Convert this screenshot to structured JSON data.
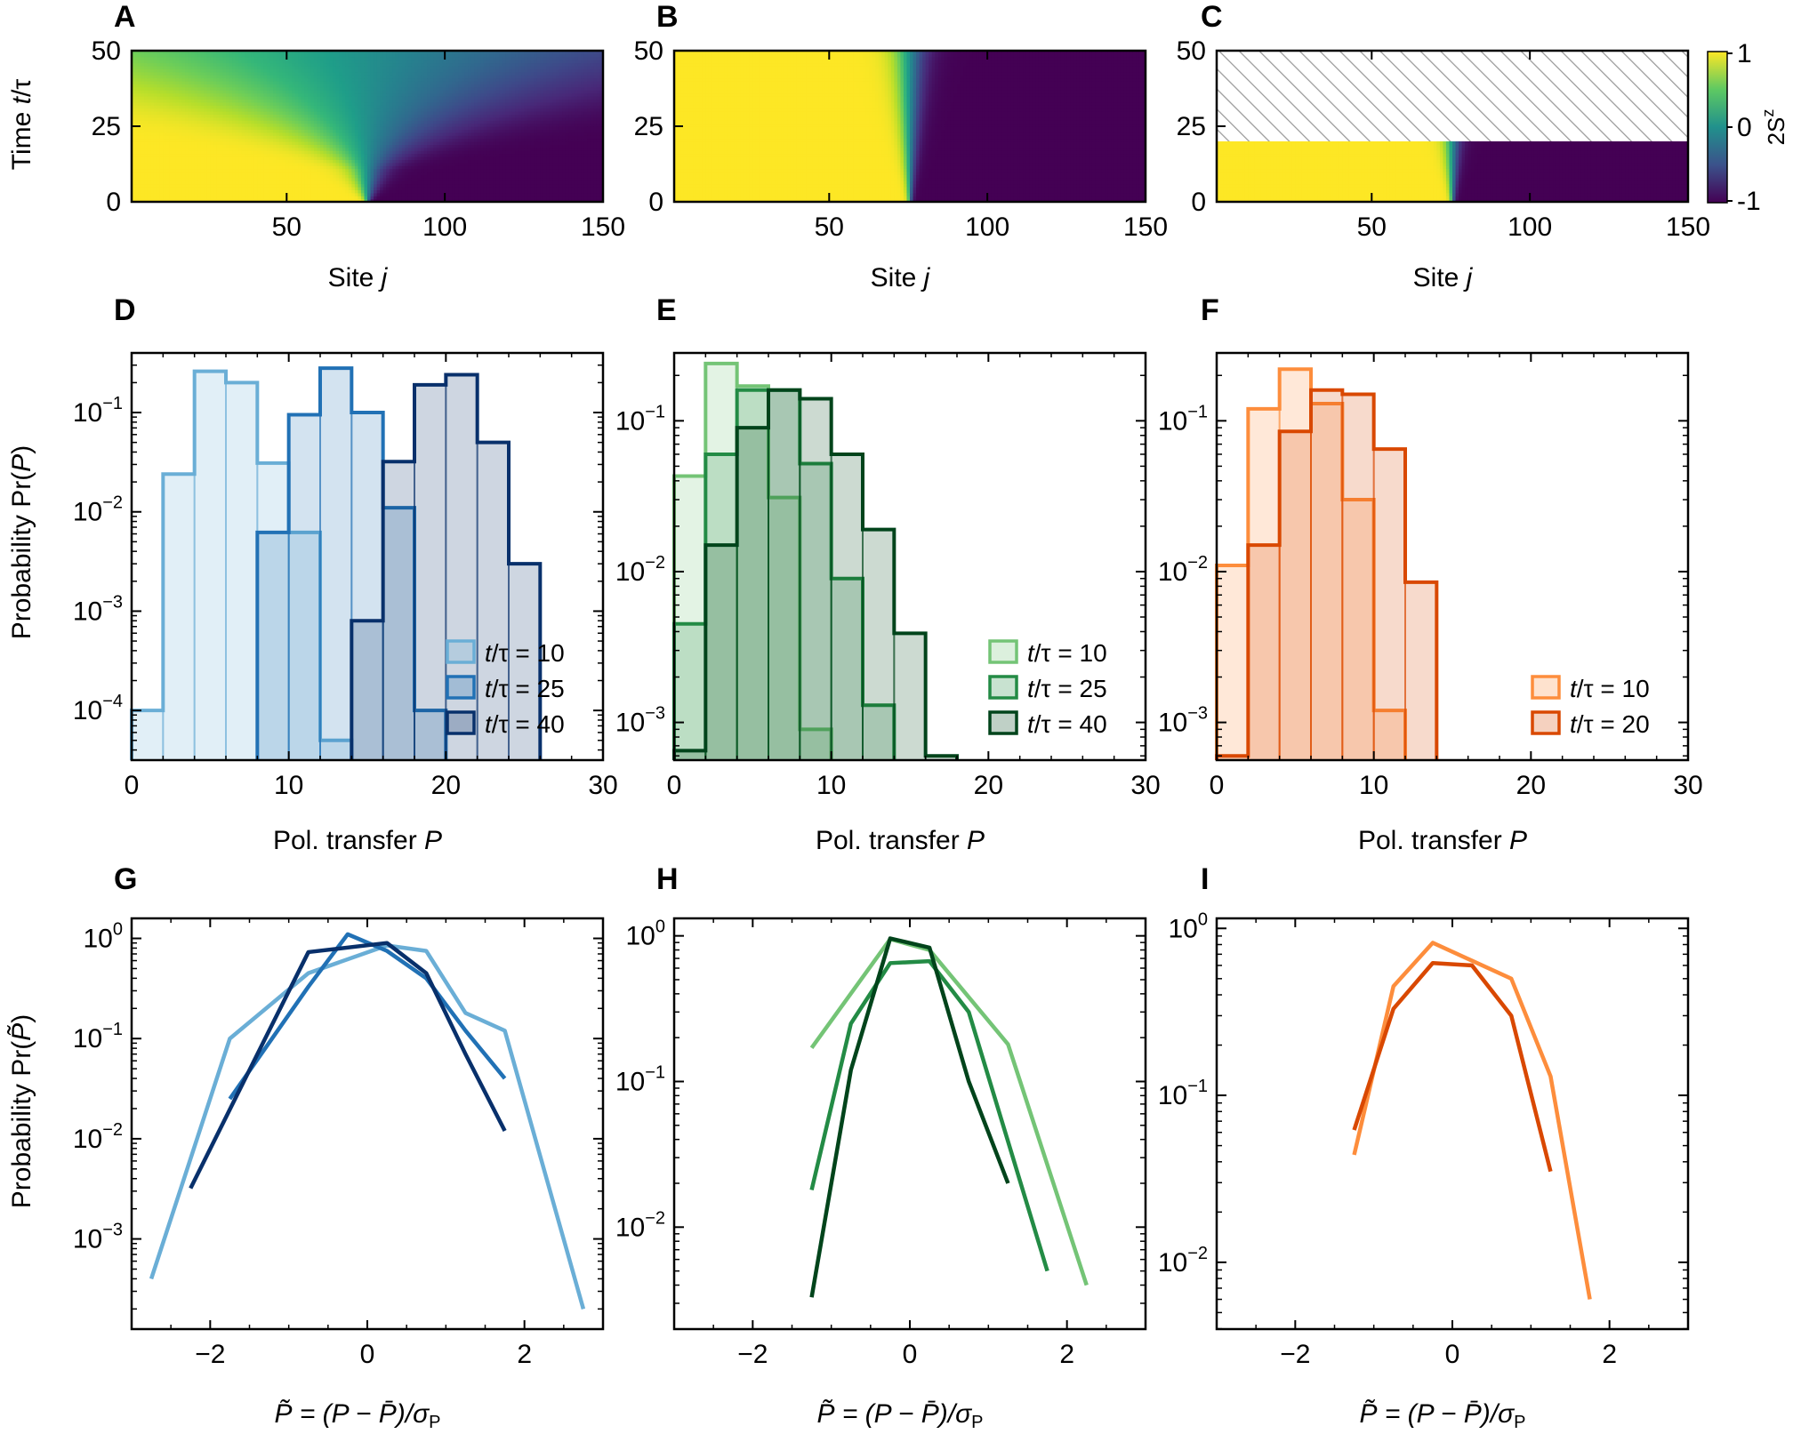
{
  "colors": {
    "blues": [
      "#6aaed6",
      "#2171b5",
      "#08306b"
    ],
    "greens": [
      "#74c476",
      "#238b45",
      "#00441b"
    ],
    "oranges": [
      "#fd8d3c",
      "#d94801"
    ],
    "viridis_low": "#440154",
    "viridis_mid": "#21918c",
    "viridis_high": "#fde725"
  },
  "heatmap_labels": {
    "ylabel_prefix": "Time ",
    "ylabel_italic": "t",
    "ylabel_suffix": "/τ",
    "xlabel_prefix": "Site ",
    "xlabel_italic": "j"
  },
  "colorbar": {
    "label": "2S",
    "label_sup": "z",
    "ticks": [
      "1",
      "0",
      "-1"
    ]
  },
  "hist_labels": {
    "ylabel_prefix": "Probability Pr(",
    "ylabel_italic": "P",
    "ylabel_suffix": ")",
    "xlabel_prefix": "Pol. transfer ",
    "xlabel_italic": "P"
  },
  "rescaled_labels": {
    "ylabel_prefix": "Probability Pr(",
    "ylabel_italic": "P̃",
    "ylabel_suffix": ")",
    "xlabel": "P̃ = (P − P̄)/σ",
    "xlabel_sub": "P"
  },
  "chart_data": [
    {
      "panel": "A",
      "type": "heatmap",
      "xlim": [
        1,
        150
      ],
      "ylim": [
        0,
        50
      ],
      "x_ticks": [
        50,
        100,
        150
      ],
      "y_ticks": [
        0,
        25,
        50
      ],
      "x_tick_labels": [
        "50",
        "100",
        "150"
      ],
      "y_tick_labels": [
        "0",
        "25",
        "50"
      ],
      "value_range": [
        -1,
        1
      ],
      "center_site": 75.5,
      "front_width": 12,
      "front_slope": 1.05,
      "t_max_data": 50
    },
    {
      "panel": "B",
      "type": "heatmap",
      "xlim": [
        1,
        150
      ],
      "ylim": [
        0,
        50
      ],
      "x_ticks": [
        50,
        100,
        150
      ],
      "y_ticks": [
        0,
        25,
        50
      ],
      "x_tick_labels": [
        "50",
        "100",
        "150"
      ],
      "y_tick_labels": [
        "0",
        "25",
        "50"
      ],
      "value_range": [
        -1,
        1
      ],
      "center_site": 75.5,
      "front_width": 10,
      "front_slope": 0.2,
      "t_max_data": 50
    },
    {
      "panel": "C",
      "type": "heatmap",
      "xlim": [
        1,
        150
      ],
      "ylim": [
        0,
        50
      ],
      "x_ticks": [
        50,
        100,
        150
      ],
      "y_ticks": [
        0,
        25,
        50
      ],
      "x_tick_labels": [
        "50",
        "100",
        "150"
      ],
      "y_tick_labels": [
        "0",
        "25",
        "50"
      ],
      "value_range": [
        -1,
        1
      ],
      "center_site": 75.5,
      "front_width": 10,
      "front_slope": 0.22,
      "t_max_data": 20
    },
    {
      "panel": "D",
      "type": "bar",
      "xlim": [
        0,
        30
      ],
      "ylim_log10": [
        -4.5,
        -0.4
      ],
      "x_ticks": [
        0,
        10,
        20,
        30
      ],
      "x_tick_labels": [
        "0",
        "10",
        "20",
        "30"
      ],
      "y_tick_exponents": [
        -1,
        -2,
        -3,
        -4
      ],
      "legend": "lower-right",
      "series": [
        {
          "name": "t/τ=10",
          "bin_edges": [
            0,
            2,
            4,
            6,
            8,
            10,
            12,
            14
          ],
          "values": [
            0.0001,
            0.024,
            0.26,
            0.2,
            0.031,
            0.0062,
            5e-05
          ]
        },
        {
          "name": "t/τ=25",
          "bin_edges": [
            8,
            10,
            12,
            14,
            16,
            18,
            20
          ],
          "values": [
            0.0062,
            0.095,
            0.28,
            0.1,
            0.011,
            0.0001
          ]
        },
        {
          "name": "t/τ=40",
          "bin_edges": [
            14,
            16,
            18,
            20,
            22,
            24,
            26
          ],
          "values": [
            0.0008,
            0.032,
            0.19,
            0.24,
            0.05,
            0.003
          ]
        }
      ]
    },
    {
      "panel": "E",
      "type": "bar",
      "xlim": [
        0,
        30
      ],
      "ylim_log10": [
        -3.25,
        -0.55
      ],
      "x_ticks": [
        0,
        10,
        20,
        30
      ],
      "x_tick_labels": [
        "0",
        "10",
        "20",
        "30"
      ],
      "y_tick_exponents": [
        -1,
        -2,
        -3
      ],
      "legend": "lower-right",
      "series": [
        {
          "name": "t/τ=10",
          "bin_edges": [
            0,
            2,
            4,
            6,
            8,
            10
          ],
          "values": [
            0.043,
            0.24,
            0.17,
            0.031,
            0.0009
          ]
        },
        {
          "name": "t/τ=25",
          "bin_edges": [
            0,
            2,
            4,
            6,
            8,
            10,
            12,
            14
          ],
          "values": [
            0.0045,
            0.06,
            0.16,
            0.16,
            0.052,
            0.009,
            0.0013
          ]
        },
        {
          "name": "t/τ=40",
          "bin_edges": [
            0,
            2,
            4,
            6,
            8,
            10,
            12,
            14,
            16,
            18
          ],
          "values": [
            0.00065,
            0.015,
            0.09,
            0.16,
            0.14,
            0.06,
            0.019,
            0.0039,
            0.0006
          ]
        }
      ]
    },
    {
      "panel": "F",
      "type": "bar",
      "xlim": [
        0,
        30
      ],
      "ylim_log10": [
        -3.25,
        -0.55
      ],
      "x_ticks": [
        0,
        10,
        20,
        30
      ],
      "x_tick_labels": [
        "0",
        "10",
        "20",
        "30"
      ],
      "y_tick_exponents": [
        -1,
        -2,
        -3
      ],
      "legend": "lower-right",
      "series": [
        {
          "name": "t/τ=10",
          "bin_edges": [
            0,
            2,
            4,
            6,
            8,
            10,
            12
          ],
          "values": [
            0.011,
            0.12,
            0.22,
            0.13,
            0.03,
            0.0012
          ]
        },
        {
          "name": "t/τ=20",
          "bin_edges": [
            0,
            2,
            4,
            6,
            8,
            10,
            12,
            14
          ],
          "values": [
            0.0006,
            0.015,
            0.085,
            0.16,
            0.15,
            0.065,
            0.0085
          ]
        }
      ]
    },
    {
      "panel": "G",
      "type": "line",
      "xlim": [
        -3,
        3
      ],
      "ylim_log10": [
        -3.9,
        0.2
      ],
      "x_ticks": [
        -2,
        0,
        2
      ],
      "x_tick_labels": [
        "−2",
        "0",
        "2"
      ],
      "y_tick_exponents": [
        0,
        -1,
        -2,
        -3
      ],
      "series": [
        {
          "name": "t/τ=10",
          "x": [
            -2.75,
            -1.75,
            -0.75,
            0.25,
            0.75,
            1.25,
            1.75,
            2.75
          ],
          "values": [
            0.0004,
            0.1,
            0.45,
            0.85,
            0.75,
            0.18,
            0.12,
            0.0002
          ]
        },
        {
          "name": "t/τ=25",
          "x": [
            -1.75,
            -0.75,
            -0.25,
            0.25,
            0.75,
            1.25,
            1.75
          ],
          "values": [
            0.025,
            0.33,
            1.1,
            0.75,
            0.4,
            0.12,
            0.04
          ]
        },
        {
          "name": "t/τ=40",
          "x": [
            -2.25,
            -1.25,
            -0.75,
            0.25,
            0.75,
            1.25,
            1.75
          ],
          "values": [
            0.0032,
            0.12,
            0.73,
            0.9,
            0.45,
            0.07,
            0.012
          ]
        }
      ]
    },
    {
      "panel": "H",
      "type": "line",
      "xlim": [
        -3,
        3
      ],
      "ylim_log10": [
        -2.7,
        0.12
      ],
      "x_ticks": [
        -2,
        0,
        2
      ],
      "x_tick_labels": [
        "−2",
        "0",
        "2"
      ],
      "y_tick_exponents": [
        0,
        -1,
        -2
      ],
      "series": [
        {
          "name": "t/τ=10",
          "x": [
            -1.25,
            -0.25,
            0.25,
            1.25,
            2.25
          ],
          "values": [
            0.17,
            0.95,
            0.8,
            0.18,
            0.004
          ]
        },
        {
          "name": "t/τ=25",
          "x": [
            -1.25,
            -0.75,
            -0.25,
            0.25,
            0.75,
            1.75
          ],
          "values": [
            0.018,
            0.25,
            0.65,
            0.67,
            0.3,
            0.005
          ]
        },
        {
          "name": "t/τ=40",
          "x": [
            -1.25,
            -0.75,
            -0.25,
            0.25,
            0.75,
            1.25
          ],
          "values": [
            0.0033,
            0.12,
            0.96,
            0.83,
            0.1,
            0.02
          ]
        }
      ]
    },
    {
      "panel": "I",
      "type": "line",
      "xlim": [
        -3,
        3
      ],
      "ylim_log10": [
        -2.4,
        0.06
      ],
      "x_ticks": [
        -2,
        0,
        2
      ],
      "x_tick_labels": [
        "−2",
        "0",
        "2"
      ],
      "y_tick_exponents": [
        0,
        -1,
        -2
      ],
      "series": [
        {
          "name": "t/τ=10",
          "x": [
            -1.25,
            -0.75,
            -0.25,
            0.75,
            1.25,
            1.75
          ],
          "values": [
            0.044,
            0.45,
            0.82,
            0.5,
            0.13,
            0.006
          ]
        },
        {
          "name": "t/τ=20",
          "x": [
            -1.25,
            -0.75,
            -0.25,
            0.25,
            0.75,
            1.25
          ],
          "values": [
            0.062,
            0.33,
            0.62,
            0.6,
            0.3,
            0.035
          ]
        }
      ]
    }
  ]
}
